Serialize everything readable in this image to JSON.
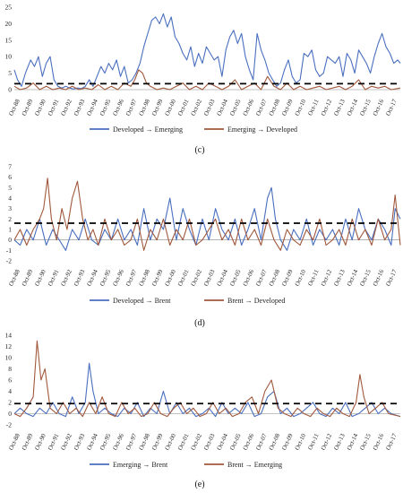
{
  "chart_data": [
    {
      "id": "c",
      "type": "line",
      "caption": "(c)",
      "ylim": [
        0,
        25
      ],
      "yticks": [
        0,
        5,
        10,
        15,
        20,
        25
      ],
      "threshold": 1.8,
      "x_labels": [
        "Oct-88",
        "Oct-89",
        "Oct-90",
        "Oct-91",
        "Oct-92",
        "Oct-93",
        "Oct-94",
        "Oct-95",
        "Oct-96",
        "Oct-97",
        "Oct-98",
        "Oct-99",
        "Oct-00",
        "Oct-01",
        "Oct-02",
        "Oct-03",
        "Oct-04",
        "Oct-05",
        "Oct-06",
        "Oct-07",
        "Oct-08",
        "Oct-09",
        "Oct-10",
        "Oct-11",
        "Oct-12",
        "Oct-13",
        "Oct-14",
        "Oct-15",
        "Oct-16",
        "Oct-17"
      ],
      "x_range": [
        1988.75,
        2018.4
      ],
      "series": [
        {
          "name": "Developed → Emerging",
          "color": "#4a6fbf",
          "x": [
            1988.75,
            1989.0,
            1989.3,
            1989.6,
            1990.0,
            1990.3,
            1990.6,
            1990.9,
            1991.2,
            1991.5,
            1991.8,
            1992.1,
            1992.4,
            1992.7,
            1993.0,
            1993.3,
            1993.6,
            1993.9,
            1994.2,
            1994.5,
            1994.8,
            1995.1,
            1995.4,
            1995.7,
            1996.0,
            1996.3,
            1996.6,
            1996.9,
            1997.2,
            1997.5,
            1997.8,
            1998.1,
            1998.4,
            1998.7,
            1999.0,
            1999.3,
            1999.6,
            1999.9,
            2000.2,
            2000.5,
            2000.8,
            2001.1,
            2001.4,
            2001.7,
            2002.0,
            2002.3,
            2002.6,
            2002.9,
            2003.2,
            2003.5,
            2003.8,
            2004.1,
            2004.4,
            2004.7,
            2005.0,
            2005.3,
            2005.6,
            2005.9,
            2006.2,
            2006.5,
            2006.8,
            2007.1,
            2007.4,
            2007.7,
            2008.0,
            2008.3,
            2008.6,
            2008.9,
            2009.2,
            2009.5,
            2009.8,
            2010.1,
            2010.4,
            2010.7,
            2011.0,
            2011.3,
            2011.6,
            2011.9,
            2012.2,
            2012.5,
            2012.8,
            2013.1,
            2013.4,
            2013.7,
            2014.0,
            2014.3,
            2014.6,
            2014.9,
            2015.2,
            2015.5,
            2015.8,
            2016.1,
            2016.4,
            2016.7,
            2017.0,
            2017.3,
            2017.6,
            2017.9,
            2018.2,
            2018.4
          ],
          "y": [
            6,
            3,
            1,
            5,
            9,
            7,
            10,
            4,
            8,
            10,
            3,
            1,
            0.5,
            1,
            0.5,
            0.2,
            0.5,
            0.3,
            1,
            3,
            1,
            4,
            7,
            5,
            8,
            6,
            9,
            4,
            7,
            2,
            3,
            5,
            8,
            13,
            17,
            21,
            22,
            20,
            23,
            19,
            22,
            16,
            14,
            11,
            9,
            13,
            7,
            11,
            8,
            13,
            11,
            9,
            10,
            4,
            12,
            16,
            18,
            14,
            17,
            10,
            6,
            3,
            17,
            12,
            9,
            5,
            3,
            1,
            2,
            6,
            9,
            4,
            2,
            3,
            11,
            10,
            12,
            6,
            4,
            5,
            10,
            9,
            8,
            10,
            4,
            11,
            9,
            5,
            12,
            10,
            8,
            5,
            10,
            14,
            17,
            13,
            11,
            8,
            9,
            8
          ]
        },
        {
          "name": "Emerging → Developed",
          "color": "#a0583c",
          "x": [
            1988.75,
            1989.2,
            1989.7,
            1990.2,
            1990.7,
            1991.2,
            1991.7,
            1992.2,
            1992.7,
            1993.2,
            1993.7,
            1994.2,
            1994.7,
            1995.2,
            1995.7,
            1996.2,
            1996.7,
            1997.2,
            1997.7,
            1998.0,
            1998.3,
            1998.6,
            1998.9,
            1999.2,
            1999.7,
            2000.2,
            2000.7,
            2001.2,
            2001.7,
            2002.2,
            2002.7,
            2003.2,
            2003.7,
            2004.2,
            2004.7,
            2005.2,
            2005.7,
            2006.2,
            2006.7,
            2007.2,
            2007.7,
            2008.2,
            2008.7,
            2009.2,
            2009.7,
            2010.2,
            2010.7,
            2011.2,
            2011.7,
            2012.2,
            2012.7,
            2013.2,
            2013.7,
            2014.2,
            2014.7,
            2015.2,
            2015.7,
            2016.2,
            2016.7,
            2017.2,
            2017.7,
            2018.4
          ],
          "y": [
            1,
            0,
            0.5,
            2,
            0,
            1,
            -0.5,
            0.5,
            0,
            1,
            -0.5,
            0.5,
            0,
            1.5,
            0,
            1,
            0,
            2,
            1,
            3,
            6,
            5,
            2,
            1,
            0,
            0.5,
            0,
            1,
            2,
            0,
            1,
            0,
            2,
            1,
            0,
            1,
            3,
            0,
            1,
            2,
            0,
            4,
            1,
            0,
            2,
            0,
            1,
            0,
            0.5,
            1,
            0,
            0.5,
            1,
            0,
            1,
            3,
            0,
            1,
            0.5,
            1,
            0,
            0.5
          ]
        }
      ]
    },
    {
      "id": "d",
      "type": "line",
      "caption": "(d)",
      "ylim": [
        -2,
        7
      ],
      "yticks": [
        -2,
        -1,
        0,
        1,
        2,
        3,
        4,
        5,
        6,
        7
      ],
      "threshold": 1.6,
      "x_labels": [
        "Oct-88",
        "Oct-89",
        "Oct-90",
        "Oct-91",
        "Oct-92",
        "Oct-93",
        "Oct-94",
        "Oct-95",
        "Oct-96",
        "Oct-97",
        "Oct-98",
        "Oct-99",
        "Oct-00",
        "Oct-01",
        "Oct-02",
        "Oct-03",
        "Oct-04",
        "Oct-05",
        "Oct-06",
        "Oct-07",
        "Oct-08",
        "Oct-09",
        "Oct-10",
        "Oct-11",
        "Oct-12",
        "Oct-13",
        "Oct-14",
        "Oct-15",
        "Oct-16",
        "Oct-17"
      ],
      "x_range": [
        1988.75,
        2018.4
      ],
      "series": [
        {
          "name": "Developed → Brent",
          "color": "#4a6fbf",
          "x": [
            1988.75,
            1989.2,
            1989.7,
            1990.2,
            1990.7,
            1991.2,
            1991.7,
            1992.2,
            1992.7,
            1993.2,
            1993.7,
            1994.2,
            1994.7,
            1995.2,
            1995.7,
            1996.2,
            1996.7,
            1997.2,
            1997.7,
            1998.2,
            1998.7,
            1999.2,
            1999.7,
            2000.2,
            2000.7,
            2001.2,
            2001.7,
            2002.2,
            2002.7,
            2003.2,
            2003.7,
            2004.2,
            2004.7,
            2005.2,
            2005.7,
            2006.2,
            2006.7,
            2007.2,
            2007.7,
            2008.2,
            2008.5,
            2008.8,
            2009.2,
            2009.7,
            2010.2,
            2010.7,
            2011.2,
            2011.7,
            2012.2,
            2012.7,
            2013.2,
            2013.7,
            2014.2,
            2014.7,
            2015.2,
            2015.7,
            2016.2,
            2016.7,
            2017.2,
            2017.7,
            2018.0,
            2018.4
          ],
          "y": [
            0,
            -0.5,
            1,
            0,
            2,
            -0.5,
            1,
            0,
            -1,
            1,
            0,
            2,
            0,
            -0.5,
            1,
            0,
            2,
            0,
            1,
            -0.5,
            3,
            0,
            2,
            1,
            4,
            0,
            3,
            1,
            -0.5,
            2,
            0,
            3,
            1,
            0,
            2,
            -0.5,
            1,
            3,
            0,
            4,
            5,
            2,
            0,
            -1,
            1,
            0,
            2,
            -0.5,
            1,
            0,
            1,
            -0.5,
            2,
            0,
            3,
            1,
            0,
            2,
            1,
            -0.5,
            3,
            2
          ]
        },
        {
          "name": "Brent → Developed",
          "color": "#a0583c",
          "x": [
            1988.75,
            1989.2,
            1989.7,
            1990.2,
            1990.7,
            1991.0,
            1991.3,
            1991.6,
            1992.0,
            1992.4,
            1992.8,
            1993.2,
            1993.6,
            1994.0,
            1994.4,
            1994.8,
            1995.2,
            1995.7,
            1996.2,
            1996.7,
            1997.2,
            1997.7,
            1998.2,
            1998.7,
            1999.2,
            1999.7,
            2000.2,
            2000.7,
            2001.2,
            2001.7,
            2002.2,
            2002.7,
            2003.2,
            2003.7,
            2004.2,
            2004.7,
            2005.2,
            2005.7,
            2006.2,
            2006.7,
            2007.2,
            2007.7,
            2008.2,
            2008.7,
            2009.2,
            2009.7,
            2010.2,
            2010.7,
            2011.2,
            2011.7,
            2012.2,
            2012.7,
            2013.2,
            2013.7,
            2014.2,
            2014.7,
            2015.2,
            2015.7,
            2016.2,
            2016.7,
            2017.2,
            2017.7,
            2018.0,
            2018.4
          ],
          "y": [
            0,
            1,
            -0.5,
            1,
            2,
            3,
            5.9,
            2,
            0,
            3,
            1,
            4,
            5.6,
            2,
            0,
            1,
            -0.5,
            2,
            0,
            1,
            -0.5,
            0,
            2,
            -1,
            1,
            0,
            2,
            -0.5,
            1,
            0,
            2,
            -0.5,
            0,
            1,
            2,
            0,
            1,
            -0.5,
            2,
            0,
            1,
            -0.5,
            2,
            0,
            -1,
            1,
            0,
            -0.5,
            1,
            0,
            2,
            -0.5,
            0,
            1,
            -0.5,
            2,
            0,
            1,
            -0.5,
            2,
            0,
            1,
            4.3,
            -0.5
          ]
        }
      ]
    },
    {
      "id": "e",
      "type": "line",
      "caption": "(e)",
      "ylim": [
        -2,
        14
      ],
      "yticks": [
        -2,
        0,
        2,
        4,
        6,
        8,
        10,
        12,
        14
      ],
      "threshold": 1.8,
      "x_labels": [
        "Oct-88",
        "Oct-89",
        "Oct-90",
        "Oct-91",
        "Oct-92",
        "Oct-93",
        "Oct-94",
        "Oct-95",
        "Oct-96",
        "Oct-97",
        "Oct-98",
        "Oct-99",
        "Oct-00",
        "Oct-01",
        "Oct-02",
        "Oct-03",
        "Oct-04",
        "Oct-05",
        "Oct-06",
        "Oct-07",
        "Oct-08",
        "Oct-09",
        "Oct-10",
        "Oct-11",
        "Oct-12",
        "Oct-13",
        "Oct-14",
        "Oct-15",
        "Oct-16",
        "Oct-17"
      ],
      "x_range": [
        1988.75,
        2018.4
      ],
      "series": [
        {
          "name": "Emerging → Brent",
          "color": "#4a6fbf",
          "x": [
            1988.75,
            1989.2,
            1989.7,
            1990.2,
            1990.7,
            1991.2,
            1991.7,
            1992.2,
            1992.7,
            1993.2,
            1993.7,
            1994.2,
            1994.5,
            1994.8,
            1995.2,
            1995.7,
            1996.2,
            1996.7,
            1997.2,
            1997.7,
            1998.2,
            1998.7,
            1999.2,
            1999.7,
            2000.2,
            2000.7,
            2001.2,
            2001.7,
            2002.2,
            2002.7,
            2003.2,
            2003.7,
            2004.2,
            2004.7,
            2005.2,
            2005.7,
            2006.2,
            2006.7,
            2007.2,
            2007.7,
            2008.2,
            2008.7,
            2009.2,
            2009.7,
            2010.2,
            2010.7,
            2011.2,
            2011.7,
            2012.2,
            2012.7,
            2013.2,
            2013.7,
            2014.2,
            2014.7,
            2015.2,
            2015.7,
            2016.2,
            2016.7,
            2017.2,
            2017.7,
            2018.4
          ],
          "y": [
            0,
            1,
            0,
            -0.5,
            1,
            0,
            2,
            0,
            -0.5,
            3,
            0,
            2,
            9,
            4,
            0,
            1,
            0,
            -0.5,
            1,
            0,
            2,
            -0.5,
            1,
            0,
            4,
            0,
            2,
            0,
            1,
            -0.5,
            0,
            1,
            -0.5,
            2,
            0,
            1,
            0,
            2,
            -0.5,
            0,
            3,
            4,
            0,
            1,
            -0.5,
            0,
            1,
            2,
            0,
            -0.5,
            1,
            0,
            2,
            -0.5,
            0,
            1,
            2,
            0,
            1,
            0,
            -0.5
          ]
        },
        {
          "name": "Brent → Emerging",
          "color": "#a0583c",
          "x": [
            1988.75,
            1989.2,
            1989.7,
            1990.2,
            1990.5,
            1990.8,
            1991.1,
            1991.5,
            1992.0,
            1992.5,
            1993.0,
            1993.5,
            1994.0,
            1994.5,
            1995.0,
            1995.5,
            1996.0,
            1996.5,
            1997.0,
            1997.5,
            1998.0,
            1998.5,
            1999.0,
            1999.5,
            2000.0,
            2000.5,
            2001.0,
            2001.5,
            2002.0,
            2002.5,
            2003.0,
            2003.5,
            2004.0,
            2004.5,
            2005.0,
            2005.5,
            2006.0,
            2006.5,
            2007.0,
            2007.5,
            2008.0,
            2008.5,
            2009.0,
            2009.5,
            2010.0,
            2010.5,
            2011.0,
            2011.5,
            2012.0,
            2012.5,
            2013.0,
            2013.5,
            2014.0,
            2014.5,
            2015.0,
            2015.3,
            2015.6,
            2016.0,
            2016.5,
            2017.0,
            2017.5,
            2018.4
          ],
          "y": [
            0,
            -0.5,
            1,
            3,
            13,
            6,
            8,
            1,
            0,
            2,
            0,
            1,
            -0.5,
            2,
            0,
            3,
            0,
            -0.5,
            2,
            0,
            1,
            -0.5,
            0,
            2,
            0,
            -0.5,
            1,
            2,
            0,
            1,
            -0.5,
            0,
            2,
            0,
            1,
            -0.5,
            0,
            2,
            3,
            0,
            4,
            6,
            1,
            0,
            -0.5,
            1,
            0,
            -0.5,
            1,
            0,
            -0.5,
            1,
            0,
            -0.5,
            2,
            7,
            3,
            0,
            1,
            2,
            0,
            -0.5
          ]
        }
      ]
    }
  ]
}
